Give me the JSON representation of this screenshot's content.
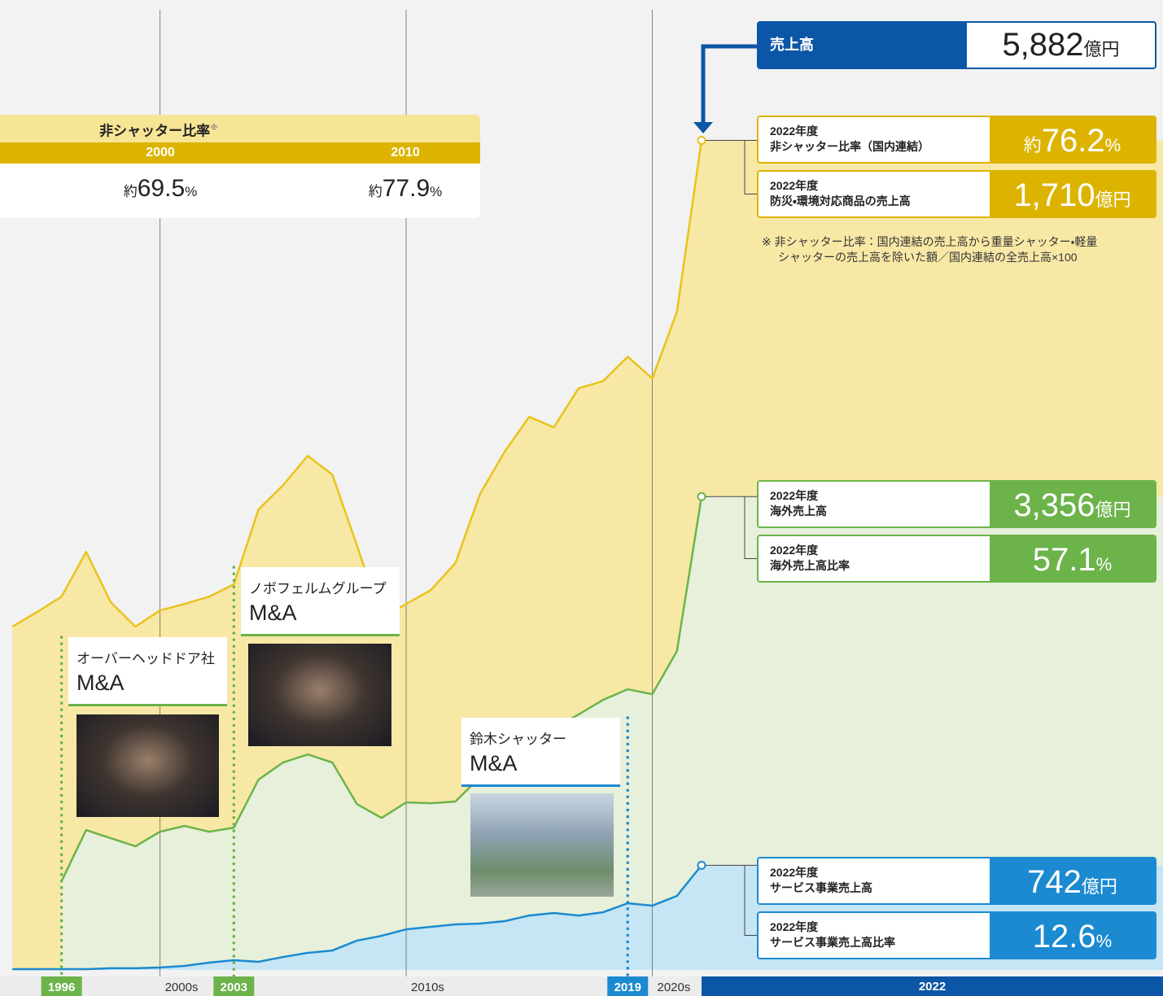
{
  "chart_data": {
    "type": "area",
    "x": [
      1994,
      1995,
      1996,
      1997,
      1998,
      1999,
      2000,
      2001,
      2002,
      2003,
      2004,
      2005,
      2006,
      2007,
      2008,
      2009,
      2010,
      2011,
      2012,
      2013,
      2014,
      2015,
      2016,
      2017,
      2018,
      2019,
      2020,
      2021,
      2022
    ],
    "series": [
      {
        "color": "#e9c31c",
        "fill": "#f8e8a6",
        "values": [
          2434,
          2537,
          2647,
          2964,
          2607,
          2434,
          2549,
          2595,
          2647,
          2734,
          3264,
          3437,
          3645,
          3512,
          3010,
          2491,
          2595,
          2693,
          2884,
          3374,
          3674,
          3922,
          3847,
          4123,
          4175,
          4348,
          4193,
          4666,
          5882
        ]
      },
      {
        "color": "#6cb34a",
        "fill": "#e7f0da",
        "values": [
          null,
          null,
          629,
          992,
          934,
          877,
          980,
          1021,
          980,
          1009,
          1349,
          1471,
          1528,
          1471,
          1176,
          1078,
          1188,
          1182,
          1194,
          1367,
          1540,
          1655,
          1713,
          1811,
          1915,
          1990,
          1955,
          2261,
          3356
        ]
      },
      {
        "color": "#1b8ad0",
        "fill": "#c6e6f6",
        "values": [
          6,
          6,
          6,
          6,
          12,
          12,
          17,
          29,
          52,
          69,
          58,
          92,
          121,
          138,
          208,
          242,
          288,
          306,
          323,
          329,
          346,
          386,
          404,
          386,
          409,
          473,
          456,
          525,
          742
        ]
      }
    ],
    "xlim": [
      1993.5,
      2022
    ],
    "ylim": [
      0,
      6000
    ],
    "decade_ticks": [
      {
        "value": 2000,
        "label": "2000s"
      },
      {
        "value": 2010,
        "label": "2010s"
      },
      {
        "value": 2020,
        "label": "2020s"
      }
    ],
    "milestones": [
      {
        "year": 1996,
        "company": "オーバーヘッドドア社",
        "event": "M&A",
        "color": "#6cb34a"
      },
      {
        "year": 2003,
        "company": "ノボフェルムグループ",
        "event": "M&A",
        "color": "#6cb34a"
      },
      {
        "year": 2019,
        "company": "鈴木シャッター",
        "event": "M&A",
        "color": "#1b8ad0"
      }
    ],
    "current_year": 2022
  },
  "ratio_box": {
    "title": "非シャッター比率",
    "mark": "※",
    "columns": [
      {
        "year": "2000",
        "prefix": "約",
        "value": "69.5",
        "unit": "%"
      },
      {
        "year": "2010",
        "prefix": "約",
        "value": "77.9",
        "unit": "%"
      }
    ]
  },
  "callouts": {
    "sales": {
      "label": "売上高",
      "value": "5,882",
      "unit": "億円"
    },
    "groups": [
      {
        "items": [
          {
            "year": "2022年度",
            "label": "非シャッター比率（国内連結）",
            "prefix": "約",
            "value": "76.2",
            "unit": "%"
          },
          {
            "year": "2022年度",
            "label": "防災・環境対応商品の売上高",
            "value": "1,710",
            "unit": "億円"
          }
        ]
      },
      {
        "items": [
          {
            "year": "2022年度",
            "label": "海外売上高",
            "value": "3,356",
            "unit": "億円"
          },
          {
            "year": "2022年度",
            "label": "海外売上高比率",
            "value": "57.1",
            "unit": "%"
          }
        ]
      },
      {
        "items": [
          {
            "year": "2022年度",
            "label": "サービス事業売上高",
            "value": "742",
            "unit": "億円"
          },
          {
            "year": "2022年度",
            "label": "サービス事業売上高比率",
            "value": "12.6",
            "unit": "%"
          }
        ]
      }
    ],
    "note": [
      "※ 非シャッター比率：国内連結の売上高から重量シャッター・軽量",
      "シャッターの売上高を除いた額／国内連結の全売上高×100"
    ]
  }
}
